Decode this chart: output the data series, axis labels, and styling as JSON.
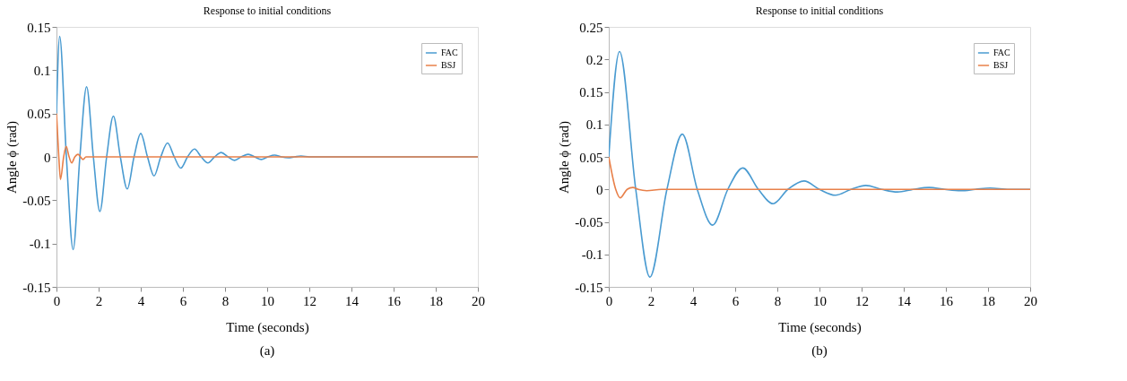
{
  "chart_data": [
    {
      "type": "line",
      "title": "Response to initial conditions",
      "xlabel": "Time (seconds)",
      "ylabel": "Angle ϕ (rad)",
      "annotations": [
        "(a)"
      ],
      "xlim": [
        0,
        20
      ],
      "xticks": [
        0,
        2,
        4,
        6,
        8,
        10,
        12,
        14,
        16,
        18,
        20
      ],
      "ylim": [
        -0.15,
        0.15
      ],
      "yticks": [
        -0.15,
        -0.1,
        -0.05,
        0,
        0.05,
        0.1,
        0.15
      ],
      "legend": "top right",
      "grid": false,
      "series": [
        {
          "name": "FAC",
          "color": "#4a9bd1",
          "x": [
            0,
            0.15,
            0.47,
            0.79,
            1.11,
            1.43,
            1.75,
            2.06,
            2.38,
            2.7,
            3.03,
            3.36,
            3.68,
            4.0,
            4.32,
            4.63,
            4.95,
            5.27,
            5.59,
            5.9,
            6.22,
            6.55,
            6.87,
            7.19,
            7.5,
            7.82,
            8.14,
            8.45,
            8.77,
            9.1,
            9.41,
            9.72,
            10.03,
            10.35,
            10.67,
            11.0,
            11.3,
            11.6,
            12.0,
            20
          ],
          "values": [
            0.05,
            0.139,
            0,
            -0.107,
            0,
            0.081,
            0,
            -0.063,
            0,
            0.047,
            0,
            -0.037,
            0,
            0.027,
            0,
            -0.022,
            0,
            0.016,
            0,
            -0.013,
            0,
            0.009,
            0,
            -0.007,
            0,
            0.005,
            0,
            -0.004,
            0,
            0.003,
            0,
            -0.003,
            0,
            0.002,
            0,
            -0.001,
            0,
            0.001,
            0,
            0
          ]
        },
        {
          "name": "BSJ",
          "color": "#e8804a",
          "x": [
            0,
            0.11,
            0.19,
            0.34,
            0.46,
            0.6,
            0.72,
            0.87,
            1.02,
            1.14,
            1.26,
            1.4,
            20
          ],
          "values": [
            0.05,
            0,
            -0.026,
            0,
            0.012,
            0,
            -0.007,
            0,
            0.003,
            0,
            -0.003,
            0,
            0
          ]
        }
      ]
    },
    {
      "type": "line",
      "title": "Response to initial conditions",
      "xlabel": "Time (seconds)",
      "ylabel": "Angle ϕ (rad)",
      "annotations": [
        "(b)"
      ],
      "xlim": [
        0,
        20
      ],
      "xticks": [
        0,
        2,
        4,
        6,
        8,
        10,
        12,
        14,
        16,
        18,
        20
      ],
      "ylim": [
        -0.15,
        0.25
      ],
      "yticks": [
        -0.15,
        -0.1,
        -0.05,
        0,
        0.05,
        0.1,
        0.15,
        0.2,
        0.25
      ],
      "legend": "top right",
      "grid": false,
      "series": [
        {
          "name": "FAC",
          "color": "#4a9bd1",
          "x": [
            0,
            0.51,
            1.28,
            1.95,
            2.76,
            3.49,
            4.2,
            4.93,
            5.65,
            6.36,
            7.1,
            7.8,
            8.5,
            9.27,
            10.0,
            10.75,
            11.5,
            12.2,
            12.95,
            13.7,
            14.45,
            15.2,
            15.95,
            16.7,
            17.4,
            18.1,
            19,
            20
          ],
          "values": [
            0.05,
            0.212,
            0,
            -0.135,
            0,
            0.085,
            0,
            -0.055,
            0,
            0.033,
            0,
            -0.022,
            0,
            0.013,
            0,
            -0.009,
            0,
            0.006,
            0,
            -0.004,
            0,
            0.003,
            0,
            -0.002,
            0,
            0.002,
            0,
            0
          ]
        },
        {
          "name": "BSJ",
          "color": "#e8804a",
          "x": [
            0,
            0.33,
            0.54,
            0.87,
            1.14,
            1.4,
            1.8,
            2.5,
            20
          ],
          "values": [
            0.05,
            0,
            -0.013,
            0,
            0.003,
            0,
            -0.002,
            0,
            0
          ]
        }
      ]
    }
  ]
}
